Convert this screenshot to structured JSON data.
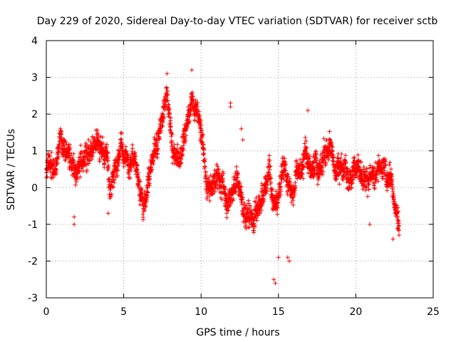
{
  "chart_data": {
    "type": "scatter",
    "title": "Day 229 of 2020, Sidereal Day-to-day VTEC variation (SDTVAR) for receiver sctb",
    "xlabel": "GPS time / hours",
    "ylabel": "SDTVAR / TECUs",
    "xlim": [
      0,
      25
    ],
    "ylim": [
      -3,
      4
    ],
    "xticks": [
      "0",
      "5",
      "10",
      "15",
      "20",
      "25"
    ],
    "yticks": [
      "-3",
      "-2",
      "-1",
      "0",
      "1",
      "2",
      "3",
      "4"
    ],
    "grid": true,
    "marker": "+",
    "color": "#ff0000",
    "series": [
      {
        "name": "SDTVAR",
        "trend": [
          [
            0.0,
            0.6
          ],
          [
            0.3,
            0.5
          ],
          [
            0.6,
            0.6
          ],
          [
            0.9,
            1.3
          ],
          [
            1.2,
            1.1
          ],
          [
            1.5,
            0.7
          ],
          [
            1.8,
            0.5
          ],
          [
            2.1,
            0.6
          ],
          [
            2.4,
            0.9
          ],
          [
            2.7,
            1.0
          ],
          [
            3.0,
            0.9
          ],
          [
            3.3,
            1.2
          ],
          [
            3.6,
            1.1
          ],
          [
            3.9,
            0.8
          ],
          [
            4.2,
            0.2
          ],
          [
            4.5,
            0.6
          ],
          [
            4.8,
            1.1
          ],
          [
            5.1,
            0.8
          ],
          [
            5.4,
            0.6
          ],
          [
            5.7,
            0.9
          ],
          [
            6.0,
            0.3
          ],
          [
            6.3,
            -0.2
          ],
          [
            6.6,
            0.3
          ],
          [
            6.9,
            0.8
          ],
          [
            7.2,
            1.2
          ],
          [
            7.5,
            2.0
          ],
          [
            7.8,
            2.5
          ],
          [
            8.1,
            1.2
          ],
          [
            8.4,
            0.6
          ],
          [
            8.7,
            1.0
          ],
          [
            9.0,
            1.6
          ],
          [
            9.3,
            2.1
          ],
          [
            9.6,
            2.4
          ],
          [
            9.9,
            1.7
          ],
          [
            10.2,
            0.6
          ],
          [
            10.5,
            0.0
          ],
          [
            10.8,
            0.1
          ],
          [
            11.1,
            0.3
          ],
          [
            11.4,
            0.0
          ],
          [
            11.7,
            -0.3
          ],
          [
            12.0,
            -0.2
          ],
          [
            12.3,
            0.3
          ],
          [
            12.6,
            -0.3
          ],
          [
            12.9,
            -0.8
          ],
          [
            13.2,
            -1.0
          ],
          [
            13.5,
            -0.8
          ],
          [
            13.8,
            -0.4
          ],
          [
            14.1,
            0.0
          ],
          [
            14.4,
            0.4
          ],
          [
            14.7,
            -0.6
          ],
          [
            15.0,
            -0.2
          ],
          [
            15.3,
            0.6
          ],
          [
            15.6,
            0.4
          ],
          [
            15.9,
            -0.2
          ],
          [
            16.2,
            0.3
          ],
          [
            16.5,
            0.7
          ],
          [
            16.8,
            1.0
          ],
          [
            17.1,
            0.5
          ],
          [
            17.4,
            0.3
          ],
          [
            17.7,
            0.7
          ],
          [
            18.0,
            1.0
          ],
          [
            18.3,
            0.9
          ],
          [
            18.6,
            0.4
          ],
          [
            18.9,
            0.5
          ],
          [
            19.2,
            0.6
          ],
          [
            19.5,
            0.3
          ],
          [
            19.8,
            0.2
          ],
          [
            20.1,
            0.5
          ],
          [
            20.4,
            0.3
          ],
          [
            20.7,
            0.2
          ],
          [
            21.0,
            0.5
          ],
          [
            21.3,
            0.2
          ],
          [
            21.6,
            0.7
          ],
          [
            21.9,
            0.3
          ],
          [
            22.2,
            0.3
          ],
          [
            22.5,
            -0.3
          ],
          [
            22.8,
            -0.8
          ]
        ],
        "outliers": [
          [
            1.8,
            -0.8
          ],
          [
            1.8,
            -1.0
          ],
          [
            4.0,
            -0.7
          ],
          [
            7.8,
            3.1
          ],
          [
            9.4,
            3.2
          ],
          [
            11.9,
            2.3
          ],
          [
            11.9,
            2.2
          ],
          [
            14.7,
            -2.5
          ],
          [
            14.8,
            -2.6
          ],
          [
            15.0,
            -1.9
          ],
          [
            16.9,
            2.1
          ],
          [
            15.6,
            -1.9
          ],
          [
            15.7,
            -2.0
          ],
          [
            22.4,
            -1.4
          ],
          [
            22.7,
            -1.1
          ],
          [
            20.9,
            -1.0
          ],
          [
            12.6,
            1.6
          ],
          [
            12.7,
            1.3
          ]
        ],
        "sample_step_hours": 0.008,
        "spread_tecu": 0.55
      }
    ]
  }
}
